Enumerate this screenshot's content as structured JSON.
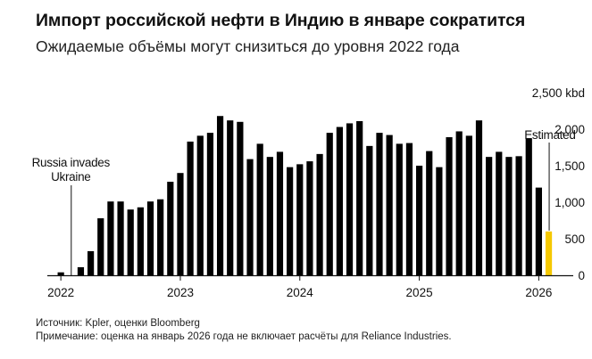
{
  "header": {
    "title": "Импорт российской нефти в Индию в январе сократится",
    "subtitle": "Ожидаемые объёмы могут снизиться до уровня 2022 года"
  },
  "footer": {
    "source": "Источник: Kpler, оценки Bloomberg",
    "note": "Примечание: оценка на январь 2026 года не включает расчёты для Reliance Industries."
  },
  "chart_data": {
    "type": "bar",
    "title": "Импорт российской нефти в Индию в январе сократится",
    "subtitle": "Ожидаемые объёмы могут снизиться до уровня 2022 года",
    "unit": "kbd",
    "ylim": [
      0,
      2500
    ],
    "yticks": [
      {
        "value": 2500,
        "label": "2,500 kbd"
      },
      {
        "value": 2000,
        "label": "2,000"
      },
      {
        "value": 1500,
        "label": "1,500"
      },
      {
        "value": 1000,
        "label": "1,000"
      },
      {
        "value": 500,
        "label": "500"
      },
      {
        "value": 0,
        "label": "0"
      }
    ],
    "x_range": [
      "2021-12",
      "2026-05"
    ],
    "xticks": [
      {
        "date": "2022-01",
        "label": "2022"
      },
      {
        "date": "2023-01",
        "label": "2023"
      },
      {
        "date": "2024-01",
        "label": "2024"
      },
      {
        "date": "2025-01",
        "label": "2025"
      },
      {
        "date": "2026-01",
        "label": "2026"
      }
    ],
    "grid": false,
    "series": [
      {
        "color": "#000000",
        "points": [
          {
            "date": "2022-01",
            "value": 40
          },
          {
            "date": "2022-02",
            "value": 0
          },
          {
            "date": "2022-03",
            "value": 110
          },
          {
            "date": "2022-04",
            "value": 330
          },
          {
            "date": "2022-05",
            "value": 780
          },
          {
            "date": "2022-06",
            "value": 1010
          },
          {
            "date": "2022-07",
            "value": 1010
          },
          {
            "date": "2022-08",
            "value": 900
          },
          {
            "date": "2022-09",
            "value": 930
          },
          {
            "date": "2022-10",
            "value": 1010
          },
          {
            "date": "2022-11",
            "value": 1040
          },
          {
            "date": "2022-12",
            "value": 1280
          },
          {
            "date": "2023-01",
            "value": 1400
          },
          {
            "date": "2023-02",
            "value": 1830
          },
          {
            "date": "2023-03",
            "value": 1910
          },
          {
            "date": "2023-04",
            "value": 1950
          },
          {
            "date": "2023-05",
            "value": 2180
          },
          {
            "date": "2023-06",
            "value": 2120
          },
          {
            "date": "2023-07",
            "value": 2100
          },
          {
            "date": "2023-08",
            "value": 1590
          },
          {
            "date": "2023-09",
            "value": 1800
          },
          {
            "date": "2023-10",
            "value": 1620
          },
          {
            "date": "2023-11",
            "value": 1690
          },
          {
            "date": "2023-12",
            "value": 1480
          },
          {
            "date": "2024-01",
            "value": 1520
          },
          {
            "date": "2024-02",
            "value": 1560
          },
          {
            "date": "2024-03",
            "value": 1660
          },
          {
            "date": "2024-04",
            "value": 1950
          },
          {
            "date": "2024-05",
            "value": 2030
          },
          {
            "date": "2024-06",
            "value": 2080
          },
          {
            "date": "2024-07",
            "value": 2110
          },
          {
            "date": "2024-08",
            "value": 1770
          },
          {
            "date": "2024-09",
            "value": 1950
          },
          {
            "date": "2024-10",
            "value": 1920
          },
          {
            "date": "2024-11",
            "value": 1800
          },
          {
            "date": "2024-12",
            "value": 1810
          },
          {
            "date": "2025-01",
            "value": 1500
          },
          {
            "date": "2025-02",
            "value": 1700
          },
          {
            "date": "2025-03",
            "value": 1480
          },
          {
            "date": "2025-04",
            "value": 1890
          },
          {
            "date": "2025-05",
            "value": 1970
          },
          {
            "date": "2025-06",
            "value": 1910
          },
          {
            "date": "2025-07",
            "value": 2120
          },
          {
            "date": "2025-08",
            "value": 1620
          },
          {
            "date": "2025-09",
            "value": 1690
          },
          {
            "date": "2025-10",
            "value": 1620
          },
          {
            "date": "2025-11",
            "value": 1630
          },
          {
            "date": "2025-12",
            "value": 1870
          },
          {
            "date": "2026-01",
            "value": 1200
          }
        ]
      },
      {
        "name": "Estimated",
        "color": "#f5c800",
        "points": [
          {
            "date": "2026-02",
            "value": 600
          }
        ]
      }
    ],
    "annotations": [
      {
        "date": "2022-02",
        "label": "Russia invades\nUkraine"
      },
      {
        "date": "2026-02",
        "label": "Estimated"
      }
    ]
  }
}
